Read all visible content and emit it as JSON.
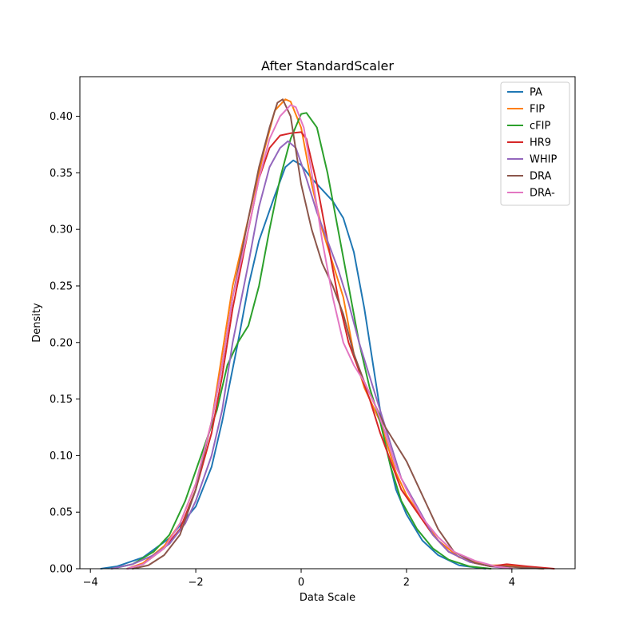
{
  "chart_data": {
    "type": "line",
    "title": "After StandardScaler",
    "xlabel": "Data Scale",
    "ylabel": "Density",
    "xlim": [
      -4.2,
      5.2
    ],
    "ylim": [
      0.0,
      0.435
    ],
    "xticks": [
      -4,
      -2,
      0,
      2,
      4
    ],
    "xtick_labels": [
      "−4",
      "−2",
      "0",
      "2",
      "4"
    ],
    "yticks": [
      0.0,
      0.05,
      0.1,
      0.15,
      0.2,
      0.25,
      0.3,
      0.35,
      0.4
    ],
    "ytick_labels": [
      "0.00",
      "0.05",
      "0.10",
      "0.15",
      "0.20",
      "0.25",
      "0.30",
      "0.35",
      "0.40"
    ],
    "grid": false,
    "legend_position": "top-right",
    "series": [
      {
        "name": "PA",
        "color": "#1f77b4",
        "points": [
          [
            -3.8,
            0.0
          ],
          [
            -3.5,
            0.002
          ],
          [
            -3.0,
            0.01
          ],
          [
            -2.5,
            0.027
          ],
          [
            -2.0,
            0.055
          ],
          [
            -1.7,
            0.09
          ],
          [
            -1.5,
            0.13
          ],
          [
            -1.2,
            0.2
          ],
          [
            -1.0,
            0.25
          ],
          [
            -0.8,
            0.29
          ],
          [
            -0.5,
            0.33
          ],
          [
            -0.3,
            0.355
          ],
          [
            -0.15,
            0.361
          ],
          [
            0.0,
            0.357
          ],
          [
            0.2,
            0.345
          ],
          [
            0.4,
            0.335
          ],
          [
            0.6,
            0.325
          ],
          [
            0.8,
            0.31
          ],
          [
            1.0,
            0.28
          ],
          [
            1.2,
            0.23
          ],
          [
            1.4,
            0.17
          ],
          [
            1.6,
            0.11
          ],
          [
            1.8,
            0.07
          ],
          [
            2.0,
            0.048
          ],
          [
            2.3,
            0.025
          ],
          [
            2.6,
            0.012
          ],
          [
            3.0,
            0.003
          ],
          [
            3.5,
            0.0
          ]
        ]
      },
      {
        "name": "FIP",
        "color": "#ff7f0e",
        "points": [
          [
            -3.3,
            0.0
          ],
          [
            -3.0,
            0.005
          ],
          [
            -2.6,
            0.02
          ],
          [
            -2.3,
            0.04
          ],
          [
            -2.0,
            0.075
          ],
          [
            -1.7,
            0.13
          ],
          [
            -1.5,
            0.19
          ],
          [
            -1.3,
            0.25
          ],
          [
            -1.0,
            0.31
          ],
          [
            -0.7,
            0.37
          ],
          [
            -0.5,
            0.405
          ],
          [
            -0.3,
            0.415
          ],
          [
            -0.2,
            0.413
          ],
          [
            0.0,
            0.39
          ],
          [
            0.2,
            0.34
          ],
          [
            0.4,
            0.3
          ],
          [
            0.6,
            0.27
          ],
          [
            0.8,
            0.24
          ],
          [
            1.0,
            0.19
          ],
          [
            1.2,
            0.16
          ],
          [
            1.5,
            0.13
          ],
          [
            1.8,
            0.085
          ],
          [
            2.0,
            0.065
          ],
          [
            2.3,
            0.045
          ],
          [
            2.6,
            0.025
          ],
          [
            3.0,
            0.01
          ],
          [
            3.5,
            0.003
          ],
          [
            3.9,
            0.003
          ],
          [
            4.3,
            0.001
          ],
          [
            4.6,
            0.0
          ]
        ]
      },
      {
        "name": "cFIP",
        "color": "#2ca02c",
        "points": [
          [
            -3.6,
            0.0
          ],
          [
            -3.2,
            0.004
          ],
          [
            -2.8,
            0.015
          ],
          [
            -2.5,
            0.03
          ],
          [
            -2.2,
            0.06
          ],
          [
            -1.9,
            0.1
          ],
          [
            -1.6,
            0.14
          ],
          [
            -1.4,
            0.18
          ],
          [
            -1.2,
            0.2
          ],
          [
            -1.0,
            0.215
          ],
          [
            -0.8,
            0.25
          ],
          [
            -0.6,
            0.3
          ],
          [
            -0.4,
            0.345
          ],
          [
            -0.2,
            0.38
          ],
          [
            0.0,
            0.402
          ],
          [
            0.1,
            0.403
          ],
          [
            0.3,
            0.39
          ],
          [
            0.5,
            0.35
          ],
          [
            0.7,
            0.3
          ],
          [
            0.9,
            0.25
          ],
          [
            1.1,
            0.2
          ],
          [
            1.3,
            0.16
          ],
          [
            1.5,
            0.13
          ],
          [
            1.7,
            0.09
          ],
          [
            1.9,
            0.06
          ],
          [
            2.2,
            0.035
          ],
          [
            2.5,
            0.018
          ],
          [
            2.8,
            0.008
          ],
          [
            3.2,
            0.002
          ],
          [
            3.6,
            0.0
          ]
        ]
      },
      {
        "name": "HR9",
        "color": "#d62728",
        "points": [
          [
            -3.3,
            0.0
          ],
          [
            -3.0,
            0.004
          ],
          [
            -2.6,
            0.018
          ],
          [
            -2.3,
            0.035
          ],
          [
            -2.0,
            0.07
          ],
          [
            -1.7,
            0.12
          ],
          [
            -1.5,
            0.17
          ],
          [
            -1.3,
            0.23
          ],
          [
            -1.0,
            0.3
          ],
          [
            -0.8,
            0.345
          ],
          [
            -0.6,
            0.372
          ],
          [
            -0.4,
            0.383
          ],
          [
            -0.2,
            0.385
          ],
          [
            0.0,
            0.386
          ],
          [
            0.1,
            0.38
          ],
          [
            0.3,
            0.34
          ],
          [
            0.5,
            0.29
          ],
          [
            0.7,
            0.24
          ],
          [
            0.9,
            0.2
          ],
          [
            1.1,
            0.175
          ],
          [
            1.3,
            0.15
          ],
          [
            1.5,
            0.12
          ],
          [
            1.7,
            0.095
          ],
          [
            1.9,
            0.07
          ],
          [
            2.2,
            0.05
          ],
          [
            2.5,
            0.03
          ],
          [
            2.8,
            0.015
          ],
          [
            3.2,
            0.006
          ],
          [
            3.6,
            0.002
          ],
          [
            3.9,
            0.004
          ],
          [
            4.3,
            0.002
          ],
          [
            4.8,
            0.0
          ]
        ]
      },
      {
        "name": "WHIP",
        "color": "#9467bd",
        "points": [
          [
            -3.6,
            0.0
          ],
          [
            -3.2,
            0.004
          ],
          [
            -2.8,
            0.012
          ],
          [
            -2.5,
            0.022
          ],
          [
            -2.2,
            0.04
          ],
          [
            -2.0,
            0.06
          ],
          [
            -1.7,
            0.1
          ],
          [
            -1.5,
            0.14
          ],
          [
            -1.3,
            0.2
          ],
          [
            -1.0,
            0.27
          ],
          [
            -0.8,
            0.32
          ],
          [
            -0.6,
            0.355
          ],
          [
            -0.4,
            0.372
          ],
          [
            -0.25,
            0.378
          ],
          [
            -0.1,
            0.372
          ],
          [
            0.1,
            0.345
          ],
          [
            0.3,
            0.315
          ],
          [
            0.5,
            0.29
          ],
          [
            0.7,
            0.265
          ],
          [
            0.9,
            0.235
          ],
          [
            1.1,
            0.2
          ],
          [
            1.3,
            0.17
          ],
          [
            1.5,
            0.14
          ],
          [
            1.7,
            0.11
          ],
          [
            1.9,
            0.08
          ],
          [
            2.2,
            0.055
          ],
          [
            2.5,
            0.03
          ],
          [
            2.8,
            0.015
          ],
          [
            3.2,
            0.006
          ],
          [
            3.6,
            0.002
          ],
          [
            4.0,
            0.0
          ]
        ]
      },
      {
        "name": "DRA",
        "color": "#8c564b",
        "points": [
          [
            -3.2,
            0.0
          ],
          [
            -2.9,
            0.003
          ],
          [
            -2.6,
            0.012
          ],
          [
            -2.3,
            0.03
          ],
          [
            -2.0,
            0.07
          ],
          [
            -1.7,
            0.13
          ],
          [
            -1.5,
            0.18
          ],
          [
            -1.3,
            0.24
          ],
          [
            -1.0,
            0.31
          ],
          [
            -0.8,
            0.355
          ],
          [
            -0.6,
            0.39
          ],
          [
            -0.45,
            0.412
          ],
          [
            -0.35,
            0.415
          ],
          [
            -0.2,
            0.4
          ],
          [
            0.0,
            0.34
          ],
          [
            0.2,
            0.3
          ],
          [
            0.4,
            0.27
          ],
          [
            0.6,
            0.25
          ],
          [
            0.8,
            0.225
          ],
          [
            1.0,
            0.19
          ],
          [
            1.2,
            0.165
          ],
          [
            1.4,
            0.145
          ],
          [
            1.6,
            0.125
          ],
          [
            1.8,
            0.11
          ],
          [
            2.0,
            0.095
          ],
          [
            2.2,
            0.075
          ],
          [
            2.4,
            0.055
          ],
          [
            2.6,
            0.035
          ],
          [
            2.9,
            0.015
          ],
          [
            3.3,
            0.005
          ],
          [
            3.6,
            0.002
          ],
          [
            3.9,
            0.002
          ],
          [
            4.2,
            0.001
          ],
          [
            4.6,
            0.0
          ]
        ]
      },
      {
        "name": "DRA-",
        "color": "#e377c2",
        "points": [
          [
            -3.3,
            0.0
          ],
          [
            -3.0,
            0.004
          ],
          [
            -2.6,
            0.018
          ],
          [
            -2.3,
            0.04
          ],
          [
            -2.0,
            0.075
          ],
          [
            -1.7,
            0.13
          ],
          [
            -1.5,
            0.18
          ],
          [
            -1.3,
            0.24
          ],
          [
            -1.0,
            0.3
          ],
          [
            -0.8,
            0.345
          ],
          [
            -0.6,
            0.38
          ],
          [
            -0.4,
            0.4
          ],
          [
            -0.2,
            0.41
          ],
          [
            -0.1,
            0.408
          ],
          [
            0.05,
            0.39
          ],
          [
            0.2,
            0.35
          ],
          [
            0.4,
            0.29
          ],
          [
            0.6,
            0.24
          ],
          [
            0.8,
            0.2
          ],
          [
            1.0,
            0.18
          ],
          [
            1.2,
            0.165
          ],
          [
            1.4,
            0.145
          ],
          [
            1.6,
            0.12
          ],
          [
            1.8,
            0.09
          ],
          [
            2.0,
            0.07
          ],
          [
            2.3,
            0.045
          ],
          [
            2.6,
            0.028
          ],
          [
            2.9,
            0.015
          ],
          [
            3.3,
            0.007
          ],
          [
            3.7,
            0.002
          ],
          [
            4.0,
            0.0
          ]
        ]
      }
    ]
  }
}
